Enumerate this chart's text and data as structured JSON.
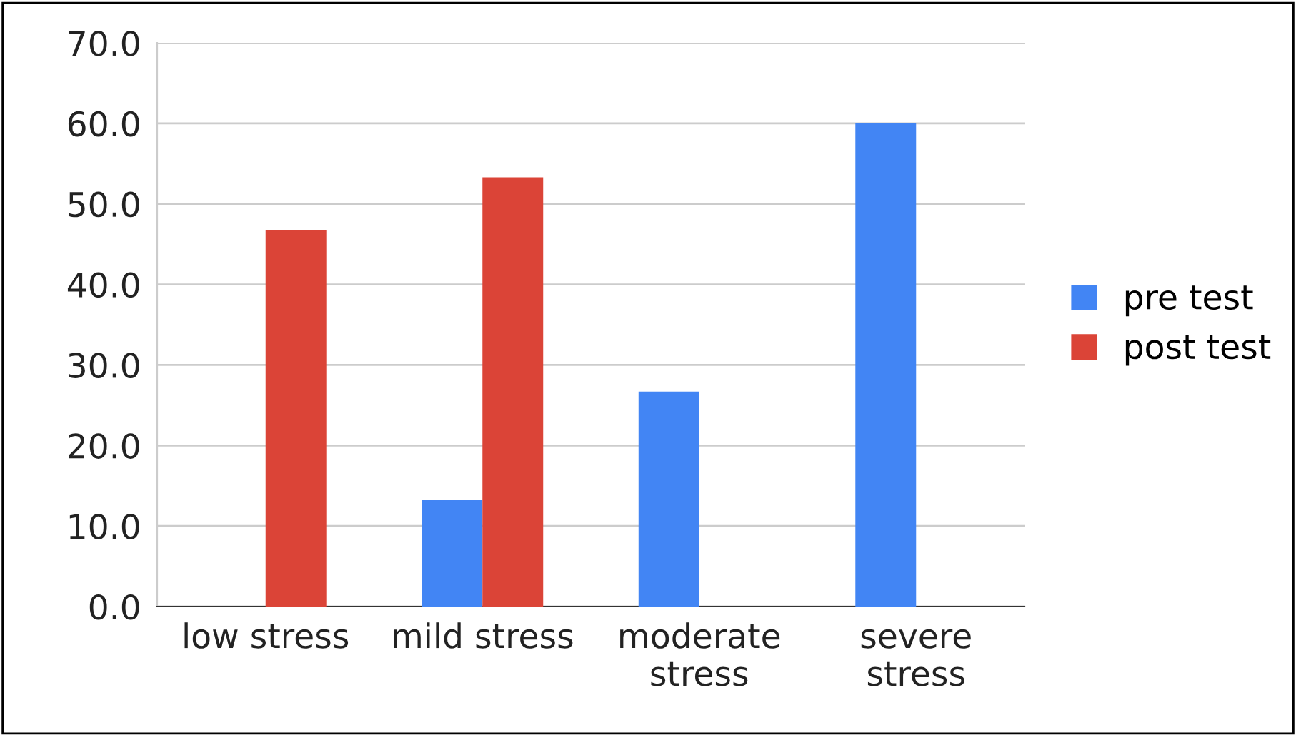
{
  "chart_data": {
    "type": "bar",
    "categories": [
      "low stress",
      "mild stress",
      "moderate stress",
      "severe stress"
    ],
    "series": [
      {
        "name": "pre test",
        "color": "#4285f4",
        "values": [
          0,
          13.3,
          26.7,
          60
        ]
      },
      {
        "name": "post test",
        "color": "#db4437",
        "values": [
          46.7,
          53.3,
          0,
          0
        ]
      }
    ],
    "ylim": [
      0,
      70
    ],
    "yticks": [
      {
        "value": 0,
        "label": "0.0"
      },
      {
        "value": 10,
        "label": "10.0"
      },
      {
        "value": 20,
        "label": "20.0"
      },
      {
        "value": 30,
        "label": "30.0"
      },
      {
        "value": 40,
        "label": "40.0"
      },
      {
        "value": 50,
        "label": "50.0"
      },
      {
        "value": 60,
        "label": "60.0"
      },
      {
        "value": 70,
        "label": "70.0"
      }
    ],
    "grid": "y",
    "legend": "right"
  }
}
